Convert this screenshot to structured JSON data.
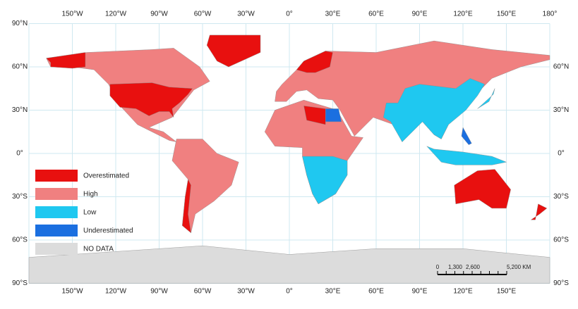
{
  "map": {
    "longitude_labels": [
      "150°W",
      "120°W",
      "90°W",
      "60°W",
      "30°W",
      "0°",
      "30°E",
      "60°E",
      "90°E",
      "120°E",
      "150°E",
      "180°"
    ],
    "latitude_labels": [
      "90°N",
      "60°N",
      "30°N",
      "0°",
      "30°S",
      "60°S",
      "90°S"
    ],
    "legend": [
      {
        "label": "Overestimated",
        "color": "#e8100f"
      },
      {
        "label": "High",
        "color": "#f08080"
      },
      {
        "label": "Low",
        "color": "#1fc8f0"
      },
      {
        "label": "Underestimated",
        "color": "#1b6fe0"
      },
      {
        "label": "NO DATA",
        "color": "#dcdcdc"
      }
    ],
    "scale_bar": [
      "0",
      "1,300",
      "2,600",
      "5,200 KM"
    ]
  }
}
